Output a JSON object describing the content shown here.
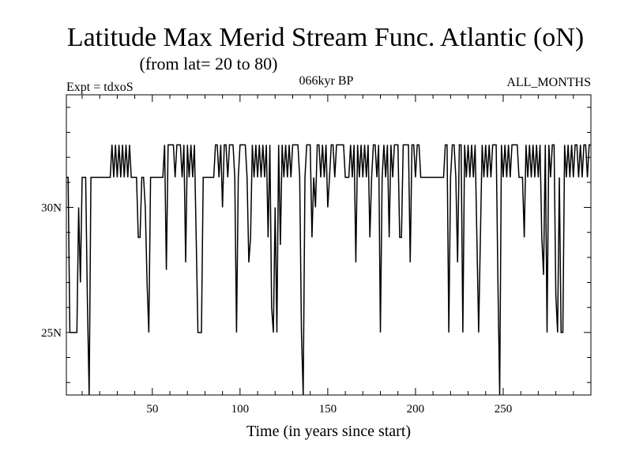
{
  "chart_data": {
    "type": "line",
    "title": "Latitude Max Merid Stream Func. Atlantic (oN)",
    "subtitle": "(from lat= 20 to 80)",
    "annotations": {
      "left": "Expt = tdxoS",
      "center": "066kyr BP",
      "right": "ALL_MONTHS"
    },
    "xlabel": "Time (in years since start)",
    "ylabel": "",
    "xlim": [
      1,
      300
    ],
    "ylim": [
      22.5,
      34.5
    ],
    "x_ticks": [
      50,
      100,
      150,
      200,
      250
    ],
    "x_tick_labels": [
      "50",
      "100",
      "150",
      "200",
      "250"
    ],
    "y_ticks": [
      25,
      30
    ],
    "y_tick_labels": [
      "25N",
      "30N"
    ],
    "grid": false,
    "series": [
      {
        "points": [
          [
            1,
            31.2
          ],
          [
            2,
            31.2
          ],
          [
            3,
            25
          ],
          [
            4,
            25
          ],
          [
            5,
            25
          ],
          [
            6,
            25
          ],
          [
            7,
            25
          ],
          [
            8,
            30
          ],
          [
            9,
            27
          ],
          [
            10,
            31.2
          ],
          [
            11,
            31.2
          ],
          [
            12,
            31.2
          ],
          [
            13,
            26.2
          ],
          [
            14,
            22.5
          ],
          [
            15,
            31.2
          ],
          [
            16,
            31.2
          ],
          [
            17,
            31.2
          ],
          [
            18,
            31.2
          ],
          [
            19,
            31.2
          ],
          [
            20,
            31.2
          ],
          [
            21,
            31.2
          ],
          [
            22,
            31.2
          ],
          [
            23,
            31.2
          ],
          [
            24,
            31.2
          ],
          [
            25,
            31.2
          ],
          [
            26,
            31.2
          ],
          [
            27,
            32.5
          ],
          [
            28,
            31.2
          ],
          [
            29,
            32.5
          ],
          [
            30,
            31.2
          ],
          [
            31,
            32.5
          ],
          [
            32,
            31.2
          ],
          [
            33,
            32.5
          ],
          [
            34,
            31.2
          ],
          [
            35,
            32.5
          ],
          [
            36,
            31.2
          ],
          [
            37,
            32.5
          ],
          [
            38,
            31.2
          ],
          [
            39,
            31.2
          ],
          [
            40,
            31.2
          ],
          [
            41,
            31.2
          ],
          [
            42,
            28.8
          ],
          [
            43,
            28.8
          ],
          [
            44,
            31.2
          ],
          [
            45,
            31.2
          ],
          [
            46,
            30
          ],
          [
            47,
            27
          ],
          [
            48,
            25
          ],
          [
            49,
            31.2
          ],
          [
            50,
            31.2
          ],
          [
            51,
            31.2
          ],
          [
            52,
            31.2
          ],
          [
            53,
            31.2
          ],
          [
            54,
            31.2
          ],
          [
            55,
            31.2
          ],
          [
            56,
            31.2
          ],
          [
            57,
            32.5
          ],
          [
            58,
            27.5
          ],
          [
            59,
            32.5
          ],
          [
            60,
            32.5
          ],
          [
            61,
            32.5
          ],
          [
            62,
            32.5
          ],
          [
            63,
            31.2
          ],
          [
            64,
            32.5
          ],
          [
            65,
            32.5
          ],
          [
            66,
            32.5
          ],
          [
            67,
            31.2
          ],
          [
            68,
            32.5
          ],
          [
            69,
            27.8
          ],
          [
            70,
            32.5
          ],
          [
            71,
            31.2
          ],
          [
            72,
            32.5
          ],
          [
            73,
            31.2
          ],
          [
            74,
            32.5
          ],
          [
            75,
            28.8
          ],
          [
            76,
            25
          ],
          [
            77,
            25
          ],
          [
            78,
            25
          ],
          [
            79,
            31.2
          ],
          [
            80,
            31.2
          ],
          [
            81,
            31.2
          ],
          [
            82,
            31.2
          ],
          [
            83,
            31.2
          ],
          [
            84,
            31.2
          ],
          [
            85,
            31.2
          ],
          [
            86,
            32.5
          ],
          [
            87,
            32.5
          ],
          [
            88,
            31.2
          ],
          [
            89,
            32.5
          ],
          [
            90,
            30
          ],
          [
            91,
            32.5
          ],
          [
            92,
            32.5
          ],
          [
            93,
            31.2
          ],
          [
            94,
            32.5
          ],
          [
            95,
            32.5
          ],
          [
            96,
            32.5
          ],
          [
            97,
            31.2
          ],
          [
            98,
            25
          ],
          [
            99,
            31.2
          ],
          [
            100,
            32.5
          ],
          [
            101,
            32.5
          ],
          [
            102,
            32.5
          ],
          [
            103,
            32.5
          ],
          [
            104,
            31.2
          ],
          [
            105,
            27.8
          ],
          [
            106,
            28.8
          ],
          [
            107,
            32.5
          ],
          [
            108,
            31.2
          ],
          [
            109,
            32.5
          ],
          [
            110,
            31.2
          ],
          [
            111,
            32.5
          ],
          [
            112,
            31.2
          ],
          [
            113,
            32.5
          ],
          [
            114,
            31.2
          ],
          [
            115,
            32.5
          ],
          [
            116,
            28.8
          ],
          [
            117,
            32.5
          ],
          [
            118,
            26
          ],
          [
            119,
            25
          ],
          [
            120,
            30
          ],
          [
            121,
            25
          ],
          [
            122,
            32.5
          ],
          [
            123,
            28.5
          ],
          [
            124,
            32.5
          ],
          [
            125,
            31.2
          ],
          [
            126,
            32.5
          ],
          [
            127,
            31.2
          ],
          [
            128,
            32.5
          ],
          [
            129,
            31.2
          ],
          [
            130,
            32.5
          ],
          [
            131,
            32.5
          ],
          [
            132,
            32.5
          ],
          [
            133,
            32.5
          ],
          [
            134,
            31.2
          ],
          [
            135,
            25
          ],
          [
            136,
            22.5
          ],
          [
            137,
            31.2
          ],
          [
            138,
            32.5
          ],
          [
            139,
            32.5
          ],
          [
            140,
            32.5
          ],
          [
            141,
            28.8
          ],
          [
            142,
            31.2
          ],
          [
            143,
            30
          ],
          [
            144,
            32.5
          ],
          [
            145,
            32.5
          ],
          [
            146,
            31.2
          ],
          [
            147,
            32.5
          ],
          [
            148,
            31.2
          ],
          [
            149,
            32.5
          ],
          [
            150,
            30
          ],
          [
            151,
            31.2
          ],
          [
            152,
            32.5
          ],
          [
            153,
            32.5
          ],
          [
            154,
            31.2
          ],
          [
            155,
            32.5
          ],
          [
            156,
            32.5
          ],
          [
            157,
            32.5
          ],
          [
            158,
            32.5
          ],
          [
            159,
            32.5
          ],
          [
            160,
            31.2
          ],
          [
            161,
            31.2
          ],
          [
            162,
            31.2
          ],
          [
            163,
            32.5
          ],
          [
            164,
            31.2
          ],
          [
            165,
            32.5
          ],
          [
            166,
            27.8
          ],
          [
            167,
            32.5
          ],
          [
            168,
            31.2
          ],
          [
            169,
            32.5
          ],
          [
            170,
            31.2
          ],
          [
            171,
            32.5
          ],
          [
            172,
            31.2
          ],
          [
            173,
            32.5
          ],
          [
            174,
            28.8
          ],
          [
            175,
            31.2
          ],
          [
            176,
            32.5
          ],
          [
            177,
            32.5
          ],
          [
            178,
            31.2
          ],
          [
            179,
            32.5
          ],
          [
            180,
            25
          ],
          [
            181,
            31.2
          ],
          [
            182,
            32.5
          ],
          [
            183,
            31.2
          ],
          [
            184,
            32.5
          ],
          [
            185,
            28.8
          ],
          [
            186,
            32.5
          ],
          [
            187,
            31.2
          ],
          [
            188,
            32.5
          ],
          [
            189,
            32.5
          ],
          [
            190,
            32.5
          ],
          [
            191,
            28.8
          ],
          [
            192,
            28.8
          ],
          [
            193,
            32.5
          ],
          [
            194,
            32.5
          ],
          [
            195,
            32.5
          ],
          [
            196,
            32.5
          ],
          [
            197,
            27.8
          ],
          [
            198,
            32.5
          ],
          [
            199,
            32.5
          ],
          [
            200,
            31.2
          ],
          [
            201,
            32.5
          ],
          [
            202,
            32.5
          ],
          [
            203,
            31.2
          ],
          [
            204,
            31.2
          ],
          [
            205,
            31.2
          ],
          [
            206,
            31.2
          ],
          [
            207,
            31.2
          ],
          [
            208,
            31.2
          ],
          [
            209,
            31.2
          ],
          [
            210,
            31.2
          ],
          [
            211,
            31.2
          ],
          [
            212,
            31.2
          ],
          [
            213,
            31.2
          ],
          [
            214,
            31.2
          ],
          [
            215,
            31.2
          ],
          [
            216,
            31.2
          ],
          [
            217,
            32.5
          ],
          [
            218,
            32.5
          ],
          [
            219,
            25
          ],
          [
            220,
            31.2
          ],
          [
            221,
            32.5
          ],
          [
            222,
            32.5
          ],
          [
            223,
            31.2
          ],
          [
            224,
            27.8
          ],
          [
            225,
            32.5
          ],
          [
            226,
            32.5
          ],
          [
            227,
            25
          ],
          [
            228,
            32.5
          ],
          [
            229,
            31.2
          ],
          [
            230,
            32.5
          ],
          [
            231,
            31.2
          ],
          [
            232,
            32.5
          ],
          [
            233,
            31.2
          ],
          [
            234,
            32.5
          ],
          [
            235,
            28.8
          ],
          [
            236,
            25
          ],
          [
            237,
            28.8
          ],
          [
            238,
            32.5
          ],
          [
            239,
            31.2
          ],
          [
            240,
            32.5
          ],
          [
            241,
            31.2
          ],
          [
            242,
            32.5
          ],
          [
            243,
            31.2
          ],
          [
            244,
            32.5
          ],
          [
            245,
            32.5
          ],
          [
            246,
            32.5
          ],
          [
            247,
            27
          ],
          [
            248,
            22.5
          ],
          [
            249,
            32.5
          ],
          [
            250,
            31.2
          ],
          [
            251,
            32.5
          ],
          [
            252,
            31.2
          ],
          [
            253,
            32.5
          ],
          [
            254,
            31.2
          ],
          [
            255,
            32.5
          ],
          [
            256,
            32.5
          ],
          [
            257,
            32.5
          ],
          [
            258,
            32.5
          ],
          [
            259,
            31.2
          ],
          [
            260,
            31.2
          ],
          [
            261,
            31.2
          ],
          [
            262,
            28.8
          ],
          [
            263,
            32.5
          ],
          [
            264,
            31.2
          ],
          [
            265,
            32.5
          ],
          [
            266,
            31.2
          ],
          [
            267,
            32.5
          ],
          [
            268,
            31.2
          ],
          [
            269,
            32.5
          ],
          [
            270,
            31.2
          ],
          [
            271,
            32.5
          ],
          [
            272,
            28.8
          ],
          [
            273,
            27.3
          ],
          [
            274,
            32.5
          ],
          [
            275,
            25
          ],
          [
            276,
            32.5
          ],
          [
            277,
            31.2
          ],
          [
            278,
            32.5
          ],
          [
            279,
            32.5
          ],
          [
            280,
            26.5
          ],
          [
            281,
            25
          ],
          [
            282,
            31.2
          ],
          [
            283,
            25
          ],
          [
            284,
            25
          ],
          [
            285,
            32.5
          ],
          [
            286,
            31.2
          ],
          [
            287,
            32.5
          ],
          [
            288,
            31.2
          ],
          [
            289,
            32.5
          ],
          [
            290,
            31.2
          ],
          [
            291,
            32.5
          ],
          [
            292,
            32.5
          ],
          [
            293,
            31.2
          ],
          [
            294,
            32.5
          ],
          [
            295,
            31.2
          ],
          [
            296,
            32.5
          ],
          [
            297,
            32.5
          ],
          [
            298,
            31.2
          ],
          [
            299,
            32.5
          ],
          [
            300,
            32.5
          ]
        ]
      }
    ]
  }
}
